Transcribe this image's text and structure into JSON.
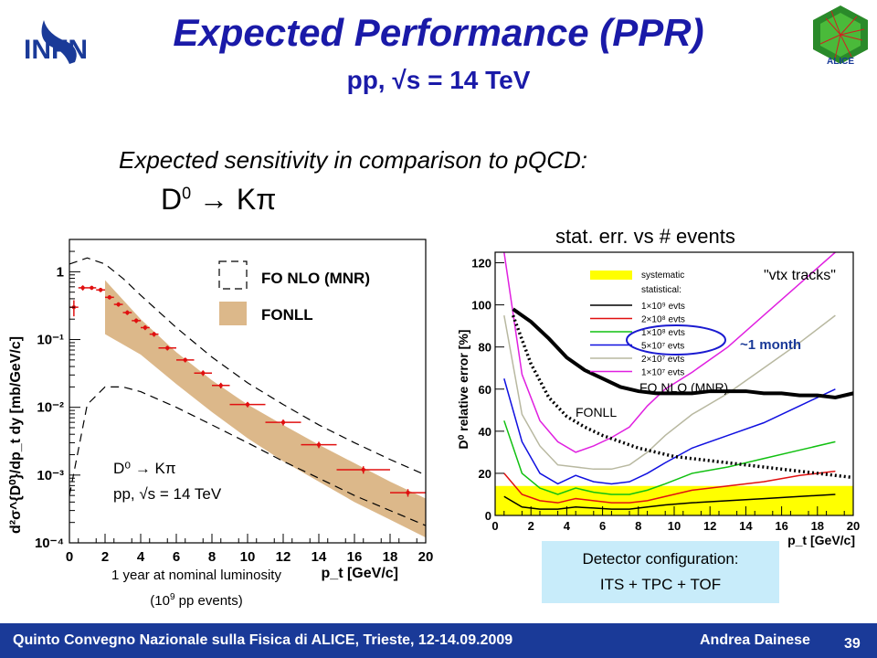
{
  "slide": {
    "title": "Expected Performance (PPR)",
    "subtitle": "pp, √s = 14 TeV",
    "intro": "Expected sensitivity in comparison to pQCD:",
    "decay_base": "D",
    "decay_sup": "0",
    "decay_rest": " → Kπ",
    "stat_title": "stat. err. vs # events",
    "lumi_line1": "1 year at nominal luminosity",
    "lumi_line2_pre": "(10",
    "lumi_line2_sup": "9",
    "lumi_line2_post": " pp events)",
    "detector_line1": "Detector configuration:",
    "detector_line2": "ITS + TPC + TOF",
    "logo_text": "INFN",
    "alice_text": "ALICE"
  },
  "footer": {
    "text": "Quinto Convegno Nazionale sulla Fisica di ALICE, Trieste, 12-14.09.2009",
    "author": "Andrea Dainese",
    "page": "39"
  },
  "colors": {
    "title_blue": "#1a1aa8",
    "footer_blue": "#1a3a98",
    "fonll_band": "#dcb88a",
    "data_red": "#e01010",
    "systematic_yellow": "#ffff00",
    "detector_box": "#c8ecfa"
  },
  "chart_data": [
    {
      "type": "scatter",
      "ylabel": "d²σ^{D⁰}/dp_t dy [mb/GeV/c]",
      "xlabel": "p_t [GeV/c]",
      "xlim": [
        0,
        20
      ],
      "ylim": [
        0.0001,
        3
      ],
      "yscale": "log",
      "x_ticks": [
        "0",
        "2",
        "4",
        "6",
        "8",
        "10",
        "12",
        "14",
        "16",
        "18",
        "20"
      ],
      "y_ticks": [
        "1",
        "10⁻¹",
        "10⁻²",
        "10⁻³",
        "10⁻⁴"
      ],
      "legend": [
        {
          "name": "FO NLO (MNR)",
          "style": "dashed box"
        },
        {
          "name": "FONLL",
          "style": "filled band"
        }
      ],
      "annotation_line1": "D⁰ → Kπ",
      "annotation_line2": "pp, √s = 14 TeV",
      "points": [
        {
          "x": 0.25,
          "xerr": 0.25,
          "y": 0.3,
          "yerr": 0.08
        },
        {
          "x": 0.75,
          "xerr": 0.25,
          "y": 0.58,
          "yerr": 0.05
        },
        {
          "x": 1.25,
          "xerr": 0.25,
          "y": 0.58,
          "yerr": 0.04
        },
        {
          "x": 1.75,
          "xerr": 0.25,
          "y": 0.54,
          "yerr": 0.04
        },
        {
          "x": 2.25,
          "xerr": 0.25,
          "y": 0.42,
          "yerr": 0.03
        },
        {
          "x": 2.75,
          "xerr": 0.25,
          "y": 0.33,
          "yerr": 0.025
        },
        {
          "x": 3.25,
          "xerr": 0.25,
          "y": 0.25,
          "yerr": 0.02
        },
        {
          "x": 3.75,
          "xerr": 0.25,
          "y": 0.19,
          "yerr": 0.015
        },
        {
          "x": 4.25,
          "xerr": 0.25,
          "y": 0.15,
          "yerr": 0.012
        },
        {
          "x": 4.75,
          "xerr": 0.25,
          "y": 0.12,
          "yerr": 0.01
        },
        {
          "x": 5.5,
          "xerr": 0.5,
          "y": 0.075,
          "yerr": 0.006
        },
        {
          "x": 6.5,
          "xerr": 0.5,
          "y": 0.05,
          "yerr": 0.004
        },
        {
          "x": 7.5,
          "xerr": 0.5,
          "y": 0.032,
          "yerr": 0.003
        },
        {
          "x": 8.5,
          "xerr": 0.5,
          "y": 0.021,
          "yerr": 0.002
        },
        {
          "x": 10,
          "xerr": 1,
          "y": 0.011,
          "yerr": 0.001
        },
        {
          "x": 12,
          "xerr": 1,
          "y": 0.006,
          "yerr": 0.0006
        },
        {
          "x": 14,
          "xerr": 1,
          "y": 0.0028,
          "yerr": 0.0003
        },
        {
          "x": 16.5,
          "xerr": 1.5,
          "y": 0.0012,
          "yerr": 0.00015
        },
        {
          "x": 19,
          "xerr": 1,
          "y": 0.00055,
          "yerr": 7e-05
        }
      ],
      "fonll_band": {
        "x": [
          2,
          4,
          6,
          8,
          10,
          12,
          14,
          16,
          18,
          20
        ],
        "upper": [
          0.75,
          0.2,
          0.065,
          0.025,
          0.011,
          0.0055,
          0.0028,
          0.0015,
          0.0008,
          0.00045
        ],
        "lower": [
          0.12,
          0.06,
          0.022,
          0.0085,
          0.0035,
          0.0016,
          0.0008,
          0.0004,
          0.00022,
          0.00012
        ]
      },
      "fo_nlo_upper": {
        "x": [
          0,
          1,
          2,
          3,
          4,
          6,
          8,
          10,
          12,
          14,
          16,
          18,
          20
        ],
        "y": [
          1.3,
          1.6,
          1.3,
          0.8,
          0.45,
          0.15,
          0.055,
          0.023,
          0.011,
          0.0055,
          0.003,
          0.0017,
          0.001
        ]
      },
      "fo_nlo_lower": {
        "x": [
          0,
          1,
          2,
          3,
          4,
          6,
          8,
          10,
          12,
          14,
          16,
          18,
          20
        ],
        "y": [
          0.0005,
          0.011,
          0.02,
          0.02,
          0.017,
          0.01,
          0.0055,
          0.003,
          0.0016,
          0.0009,
          0.0005,
          0.0003,
          0.00018
        ]
      }
    },
    {
      "type": "line",
      "ylabel": "D⁰ relative error [%]",
      "xlabel": "p_t [GeV/c]",
      "xlim": [
        0,
        20
      ],
      "ylim": [
        0,
        125
      ],
      "x_ticks": [
        "0",
        "2",
        "4",
        "6",
        "8",
        "10",
        "12",
        "14",
        "16",
        "18",
        "20"
      ],
      "y_ticks": [
        "0",
        "20",
        "40",
        "60",
        "80",
        "100",
        "120"
      ],
      "corner_label": "\"vtx tracks\"",
      "legend_title_sys": "systematic",
      "legend_title_stat": "statistical:",
      "fonll_label": "FONLL",
      "mnr_label": "FO NLO  (MNR)",
      "month_label": "~1 month",
      "systematic_band": {
        "x": [
          0,
          20
        ],
        "upper": [
          14,
          14
        ]
      },
      "series": [
        {
          "name": "1×10⁹ evts",
          "color": "#000000",
          "x": [
            0.5,
            1.5,
            2.5,
            3.5,
            4.5,
            5.5,
            6.5,
            7.5,
            8.5,
            9.5,
            11,
            13,
            15,
            17,
            19
          ],
          "y": [
            9,
            4,
            3,
            3,
            4,
            3.5,
            3,
            3,
            4,
            5,
            6,
            7,
            8,
            9,
            10
          ]
        },
        {
          "name": "2×10⁸ evts",
          "color": "#e01010",
          "x": [
            0.5,
            1.5,
            2.5,
            3.5,
            4.5,
            5.5,
            6.5,
            7.5,
            8.5,
            9.5,
            11,
            13,
            15,
            17,
            19
          ],
          "y": [
            20,
            10,
            7,
            6,
            8,
            7,
            6,
            6,
            7,
            9,
            12,
            14,
            16,
            19,
            21
          ]
        },
        {
          "name": "1×10⁸ evts",
          "color": "#10c010",
          "x": [
            0.5,
            1.5,
            2.5,
            3.5,
            4.5,
            5.5,
            6.5,
            7.5,
            8.5,
            9.5,
            11,
            13,
            15,
            17,
            19
          ],
          "y": [
            45,
            20,
            13,
            10,
            13,
            11,
            10,
            10,
            12,
            15,
            20,
            23,
            27,
            31,
            35
          ]
        },
        {
          "name": "5×10⁷ evts",
          "color": "#1010e0",
          "x": [
            0.5,
            1.5,
            2.5,
            3.5,
            4.5,
            5.5,
            6.5,
            7.5,
            8.5,
            9.5,
            11,
            13,
            15,
            17,
            19
          ],
          "y": [
            65,
            35,
            20,
            15,
            19,
            16,
            15,
            16,
            20,
            25,
            32,
            38,
            44,
            52,
            60
          ]
        },
        {
          "name": "2×10⁷ evts",
          "color": "#b8b8a0",
          "x": [
            0.5,
            1.5,
            2.5,
            3.5,
            4.5,
            5.5,
            6.5,
            7.5,
            8.5,
            9.5,
            11,
            13,
            15,
            17,
            19
          ],
          "y": [
            95,
            48,
            33,
            24,
            23,
            22,
            22,
            24,
            30,
            38,
            48,
            58,
            70,
            82,
            95
          ]
        },
        {
          "name": "1×10⁷ evts",
          "color": "#e020e0",
          "x": [
            0.5,
            1.5,
            2.5,
            3.5,
            4.5,
            5.5,
            6.5,
            7.5,
            8.5,
            9.5,
            11,
            13,
            15,
            17,
            19
          ],
          "y": [
            125,
            67,
            45,
            35,
            30,
            33,
            37,
            42,
            52,
            60,
            68,
            80,
            95,
            110,
            125
          ]
        }
      ],
      "fo_nlo_mnr": {
        "x": [
          1,
          2,
          3,
          4,
          5,
          6,
          7,
          8,
          9,
          10,
          11,
          12,
          13,
          14,
          15,
          16,
          17,
          18,
          19,
          20
        ],
        "y": [
          98,
          92,
          84,
          75,
          69,
          65,
          61,
          59,
          58,
          58,
          58,
          59,
          59,
          59,
          58,
          58,
          57,
          57,
          56,
          58
        ]
      },
      "fonll": {
        "x": [
          1,
          2,
          3,
          4,
          5,
          6,
          7,
          8,
          9,
          10,
          11,
          12,
          13,
          14,
          15,
          16,
          17,
          18,
          19,
          20
        ],
        "y": [
          95,
          72,
          56,
          47,
          42,
          38,
          35,
          32,
          30,
          28,
          27,
          26,
          25,
          24,
          23,
          22,
          21,
          20,
          19,
          18
        ]
      }
    }
  ]
}
